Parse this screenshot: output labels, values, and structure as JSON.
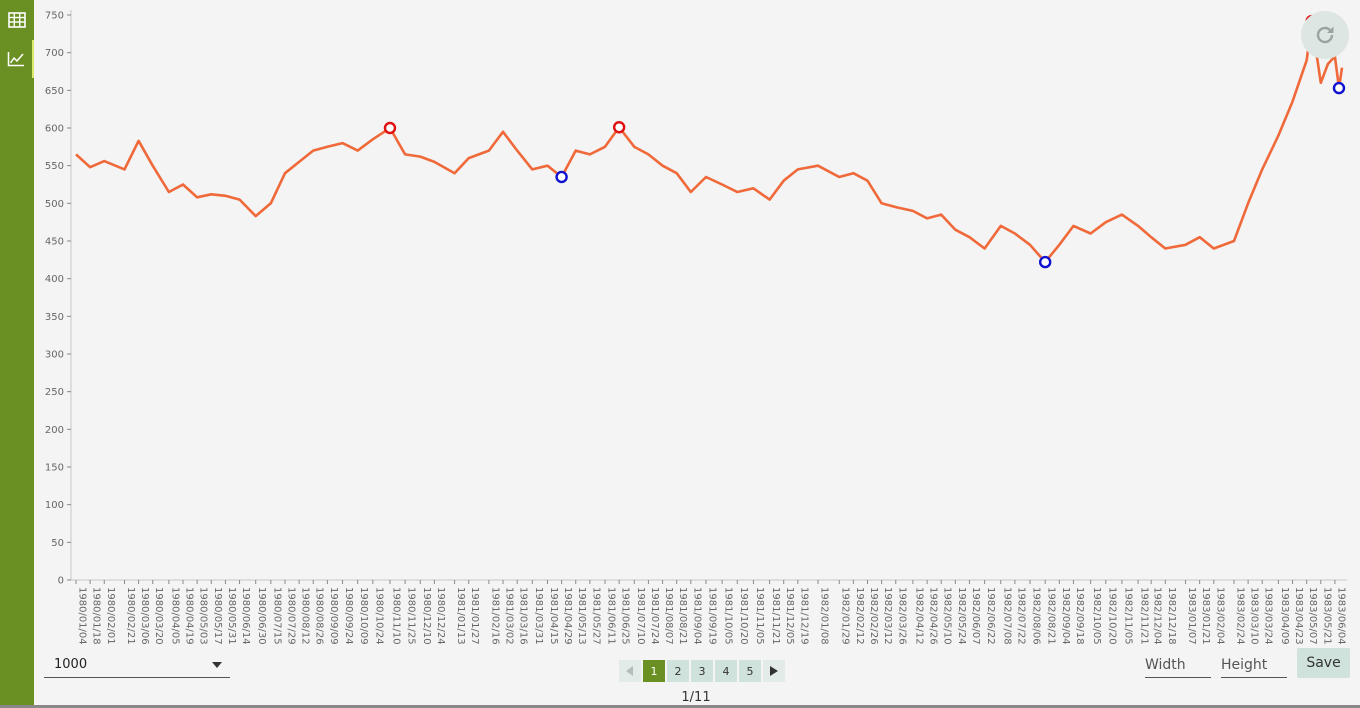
{
  "sidebar": {
    "items": [
      {
        "icon": "table-icon"
      },
      {
        "icon": "line-chart-icon",
        "active": true
      }
    ]
  },
  "colors": {
    "sidebar": "#6a8f23",
    "line": "#f0693a",
    "high_marker": "#e01010",
    "low_marker": "#1010d0",
    "button_bg": "#cfe2dc",
    "axis": "#888888"
  },
  "refresh": {
    "icon": "refresh-icon"
  },
  "controls": {
    "page_size": "1000",
    "width_placeholder": "Width",
    "height_placeholder": "Height",
    "save_label": "Save",
    "page_indicator": "1/11",
    "pages": [
      "1",
      "2",
      "3",
      "4",
      "5"
    ],
    "active_page": "1",
    "prev_icon": "triangle-left-icon",
    "next_icon": "triangle-right-icon"
  },
  "chart_data": {
    "type": "line",
    "title": "",
    "xlabel": "",
    "ylabel": "",
    "ylim": [
      0,
      750
    ],
    "yticks": [
      0,
      50,
      100,
      150,
      200,
      250,
      300,
      350,
      400,
      450,
      500,
      550,
      600,
      650,
      700,
      750
    ],
    "xlim": [
      "1980/01/04",
      "1983/06/11"
    ],
    "xticks": [
      "1980/01/04",
      "1980/01/18",
      "1980/02/01",
      "1980/02/21",
      "1980/03/06",
      "1980/03/20",
      "1980/04/05",
      "1980/04/19",
      "1980/05/03",
      "1980/05/17",
      "1980/05/31",
      "1980/06/14",
      "1980/06/30",
      "1980/07/15",
      "1980/07/29",
      "1980/08/12",
      "1980/08/26",
      "1980/09/09",
      "1980/09/24",
      "1980/10/09",
      "1980/10/24",
      "1980/11/10",
      "1980/11/25",
      "1980/12/10",
      "1980/12/24",
      "1981/01/13",
      "1981/01/27",
      "1981/02/16",
      "1981/03/02",
      "1981/03/16",
      "1981/03/31",
      "1981/04/15",
      "1981/04/29",
      "1981/05/13",
      "1981/05/27",
      "1981/06/11",
      "1981/06/25",
      "1981/07/10",
      "1981/07/24",
      "1981/08/07",
      "1981/08/21",
      "1981/09/04",
      "1981/09/19",
      "1981/10/05",
      "1981/10/20",
      "1981/11/05",
      "1981/11/21",
      "1981/12/05",
      "1981/12/19",
      "1982/01/08",
      "1982/01/29",
      "1982/02/12",
      "1982/02/26",
      "1982/03/12",
      "1982/03/26",
      "1982/04/12",
      "1982/04/26",
      "1982/05/10",
      "1982/05/24",
      "1982/06/07",
      "1982/06/22",
      "1982/07/08",
      "1982/07/22",
      "1982/08/06",
      "1982/08/21",
      "1982/09/04",
      "1982/09/18",
      "1982/10/05",
      "1982/10/20",
      "1982/11/05",
      "1982/11/21",
      "1982/12/04",
      "1982/12/18",
      "1983/01/07",
      "1983/01/21",
      "1983/02/04",
      "1983/02/24",
      "1983/03/10",
      "1983/03/24",
      "1983/04/09",
      "1983/04/23",
      "1983/05/07",
      "1983/05/21",
      "1983/06/04"
    ],
    "series": [
      {
        "points": [
          [
            "1980/01/04",
            565
          ],
          [
            "1980/01/18",
            548
          ],
          [
            "1980/02/01",
            556
          ],
          [
            "1980/02/21",
            545
          ],
          [
            "1980/03/06",
            583
          ],
          [
            "1980/03/20",
            550
          ],
          [
            "1980/04/05",
            515
          ],
          [
            "1980/04/19",
            525
          ],
          [
            "1980/05/03",
            508
          ],
          [
            "1980/05/17",
            512
          ],
          [
            "1980/05/31",
            510
          ],
          [
            "1980/06/14",
            505
          ],
          [
            "1980/06/30",
            483
          ],
          [
            "1980/07/15",
            500
          ],
          [
            "1980/07/29",
            540
          ],
          [
            "1980/08/12",
            555
          ],
          [
            "1980/08/26",
            570
          ],
          [
            "1980/09/09",
            575
          ],
          [
            "1980/09/24",
            580
          ],
          [
            "1980/10/09",
            570
          ],
          [
            "1980/10/24",
            585
          ],
          [
            "1980/11/10",
            600
          ],
          [
            "1980/11/25",
            565
          ],
          [
            "1980/12/10",
            562
          ],
          [
            "1980/12/24",
            555
          ],
          [
            "1981/01/13",
            540
          ],
          [
            "1981/01/27",
            560
          ],
          [
            "1981/02/16",
            570
          ],
          [
            "1981/03/02",
            595
          ],
          [
            "1981/03/16",
            570
          ],
          [
            "1981/03/31",
            545
          ],
          [
            "1981/04/15",
            550
          ],
          [
            "1981/04/29",
            535
          ],
          [
            "1981/05/13",
            570
          ],
          [
            "1981/05/27",
            565
          ],
          [
            "1981/06/11",
            575
          ],
          [
            "1981/06/25",
            601
          ],
          [
            "1981/07/10",
            575
          ],
          [
            "1981/07/24",
            565
          ],
          [
            "1981/08/07",
            550
          ],
          [
            "1981/08/21",
            540
          ],
          [
            "1981/09/04",
            515
          ],
          [
            "1981/09/19",
            535
          ],
          [
            "1981/10/05",
            525
          ],
          [
            "1981/10/20",
            515
          ],
          [
            "1981/11/05",
            520
          ],
          [
            "1981/11/21",
            505
          ],
          [
            "1981/12/05",
            530
          ],
          [
            "1981/12/19",
            545
          ],
          [
            "1982/01/08",
            550
          ],
          [
            "1982/01/29",
            535
          ],
          [
            "1982/02/12",
            540
          ],
          [
            "1982/02/26",
            530
          ],
          [
            "1982/03/12",
            500
          ],
          [
            "1982/03/26",
            495
          ],
          [
            "1982/04/12",
            490
          ],
          [
            "1982/04/26",
            480
          ],
          [
            "1982/05/10",
            485
          ],
          [
            "1982/05/24",
            465
          ],
          [
            "1982/06/07",
            455
          ],
          [
            "1982/06/22",
            440
          ],
          [
            "1982/07/08",
            470
          ],
          [
            "1982/07/22",
            460
          ],
          [
            "1982/08/06",
            445
          ],
          [
            "1982/08/21",
            422
          ],
          [
            "1982/09/04",
            445
          ],
          [
            "1982/09/18",
            470
          ],
          [
            "1982/10/05",
            460
          ],
          [
            "1982/10/20",
            475
          ],
          [
            "1982/11/05",
            485
          ],
          [
            "1982/11/21",
            470
          ],
          [
            "1982/12/04",
            455
          ],
          [
            "1982/12/18",
            440
          ],
          [
            "1983/01/07",
            445
          ],
          [
            "1983/01/21",
            455
          ],
          [
            "1983/02/04",
            440
          ],
          [
            "1983/02/24",
            450
          ],
          [
            "1983/03/10",
            500
          ],
          [
            "1983/03/24",
            545
          ],
          [
            "1983/04/09",
            590
          ],
          [
            "1983/04/23",
            635
          ],
          [
            "1983/05/07",
            690
          ],
          [
            "1983/05/12",
            742
          ],
          [
            "1983/05/21",
            660
          ],
          [
            "1983/05/28",
            685
          ],
          [
            "1983/06/04",
            695
          ],
          [
            "1983/06/08",
            653
          ],
          [
            "1983/06/11",
            680
          ]
        ]
      }
    ],
    "markers": {
      "highs": [
        [
          "1980/11/10",
          600
        ],
        [
          "1981/06/25",
          601
        ],
        [
          "1983/05/12",
          742
        ]
      ],
      "lows": [
        [
          "1981/04/29",
          535
        ],
        [
          "1982/08/21",
          422
        ],
        [
          "1983/06/08",
          653
        ]
      ]
    },
    "grid": false
  }
}
